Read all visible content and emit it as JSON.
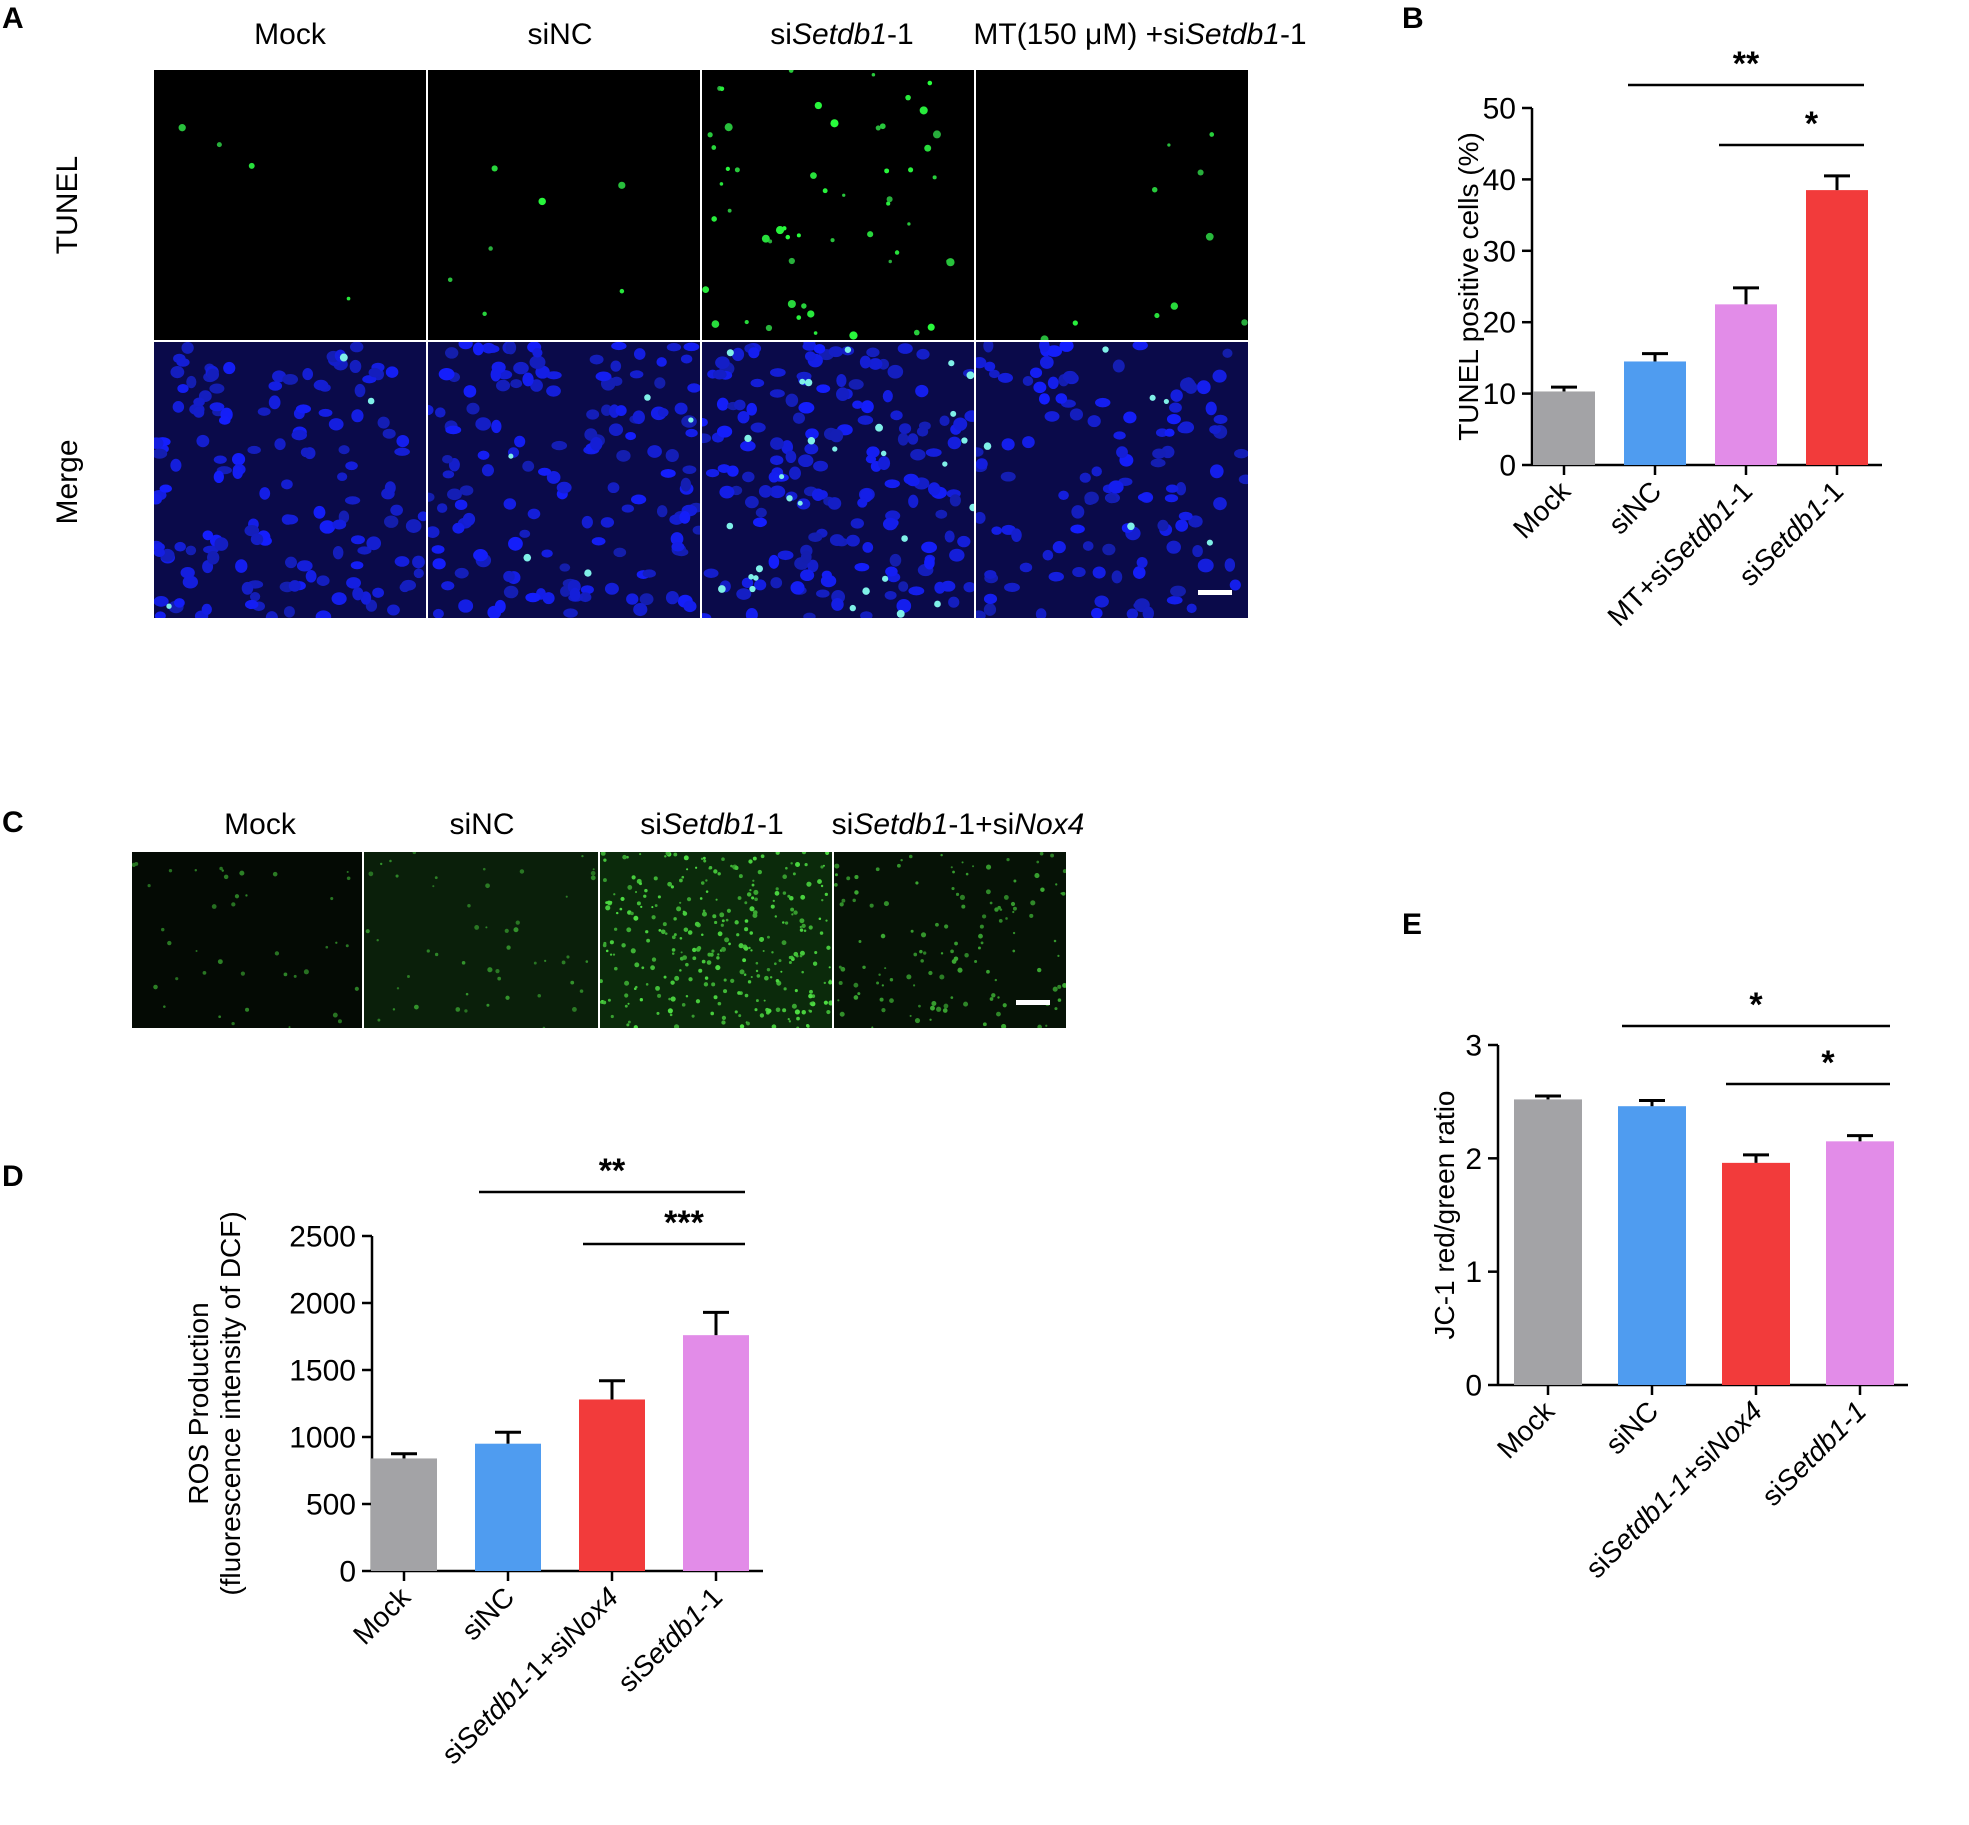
{
  "panels": {
    "A": {
      "letter": "A",
      "columns": [
        {
          "pre": "Mock",
          "it": "",
          "post": ""
        },
        {
          "pre": "siNC",
          "it": "",
          "post": ""
        },
        {
          "pre": "si",
          "it": "Setdb1",
          "post": "-1"
        },
        {
          "pre": "MT(150 μM) +si",
          "it": "Setdb1",
          "post": "-1"
        }
      ],
      "rows": [
        "TUNEL",
        "Merge"
      ]
    },
    "B": {
      "letter": "B"
    },
    "C": {
      "letter": "C",
      "columns": [
        {
          "pre": "Mock",
          "it": "",
          "post": "",
          "it2": "",
          "post2": ""
        },
        {
          "pre": "siNC",
          "it": "",
          "post": "",
          "it2": "",
          "post2": ""
        },
        {
          "pre": "si",
          "it": "Setdb1",
          "post": "-1",
          "it2": "",
          "post2": ""
        },
        {
          "pre": "si",
          "it": "Setdb1",
          "post": "-1+si",
          "it2": "Nox4",
          "post2": ""
        }
      ]
    },
    "D": {
      "letter": "D"
    },
    "E": {
      "letter": "E"
    }
  },
  "chart_data": [
    {
      "id": "B",
      "type": "bar",
      "categories": [
        {
          "pre": "Mock",
          "it": "",
          "post": "",
          "it2": "",
          "post2": ""
        },
        {
          "pre": "siNC",
          "it": "",
          "post": "",
          "it2": "",
          "post2": ""
        },
        {
          "pre": "MT+si",
          "it": "Setdb1",
          "post": "-1",
          "it2": "",
          "post2": ""
        },
        {
          "pre": "si",
          "it": "Setdb1",
          "post": "-1",
          "it2": "",
          "post2": ""
        }
      ],
      "values": [
        10.3,
        14.5,
        22.5,
        38.5
      ],
      "errors": [
        0.6,
        1.1,
        2.3,
        2.0
      ],
      "colors": [
        "#a3a3a6",
        "#4f9cf0",
        "#e28ce8",
        "#f23b3b"
      ],
      "ylabel": "TUNEL positive cells (%)",
      "ylim": [
        0,
        50
      ],
      "yticks": [
        0,
        10,
        20,
        30,
        40,
        50
      ],
      "significance": [
        {
          "from": 1,
          "to": 3,
          "label": "**"
        },
        {
          "from": 2,
          "to": 3,
          "label": "*"
        }
      ]
    },
    {
      "id": "D",
      "type": "bar",
      "categories": [
        {
          "pre": "Mock",
          "it": "",
          "post": "",
          "it2": "",
          "post2": ""
        },
        {
          "pre": "siNC",
          "it": "",
          "post": "",
          "it2": "",
          "post2": ""
        },
        {
          "pre": "si",
          "it": "Setdb1",
          "post": "-1+si",
          "it2": "Nox4",
          "post2": ""
        },
        {
          "pre": "si",
          "it": "Setdb1",
          "post": "-1",
          "it2": "",
          "post2": ""
        }
      ],
      "values": [
        840,
        950,
        1280,
        1760
      ],
      "errors": [
        35,
        85,
        140,
        170
      ],
      "colors": [
        "#a3a3a6",
        "#4f9cf0",
        "#f23b3b",
        "#e28ce8"
      ],
      "ylabel": [
        "ROS Production",
        "(fluorescence intensity of DCF)"
      ],
      "ylim": [
        0,
        2500
      ],
      "yticks": [
        0,
        500,
        1000,
        1500,
        2000,
        2500
      ],
      "significance": [
        {
          "from": 1,
          "to": 3,
          "label": "**"
        },
        {
          "from": 2,
          "to": 3,
          "label": "***"
        }
      ]
    },
    {
      "id": "E",
      "type": "bar",
      "categories": [
        {
          "pre": "Mock",
          "it": "",
          "post": "",
          "it2": "",
          "post2": ""
        },
        {
          "pre": "siNC",
          "it": "",
          "post": "",
          "it2": "",
          "post2": ""
        },
        {
          "pre": "si",
          "it": "Setdb1-1",
          "post": "+si",
          "it2": "Nox4",
          "post2": ""
        },
        {
          "pre": "si",
          "it": "Setdb1-1",
          "post": "",
          "it2": "",
          "post2": ""
        }
      ],
      "values": [
        2.52,
        2.46,
        1.96,
        2.15
      ],
      "errors": [
        0.03,
        0.05,
        0.07,
        0.05
      ],
      "colors": [
        "#a3a3a6",
        "#4f9cf0",
        "#f23b3b",
        "#e28ce8"
      ],
      "ylabel": "JC-1 red/green ratio",
      "ylim": [
        0,
        3
      ],
      "yticks": [
        0,
        1,
        2,
        3
      ],
      "significance": [
        {
          "from": 1,
          "to": 3,
          "label": "*"
        },
        {
          "from": 2,
          "to": 3,
          "label": "*"
        }
      ]
    }
  ]
}
